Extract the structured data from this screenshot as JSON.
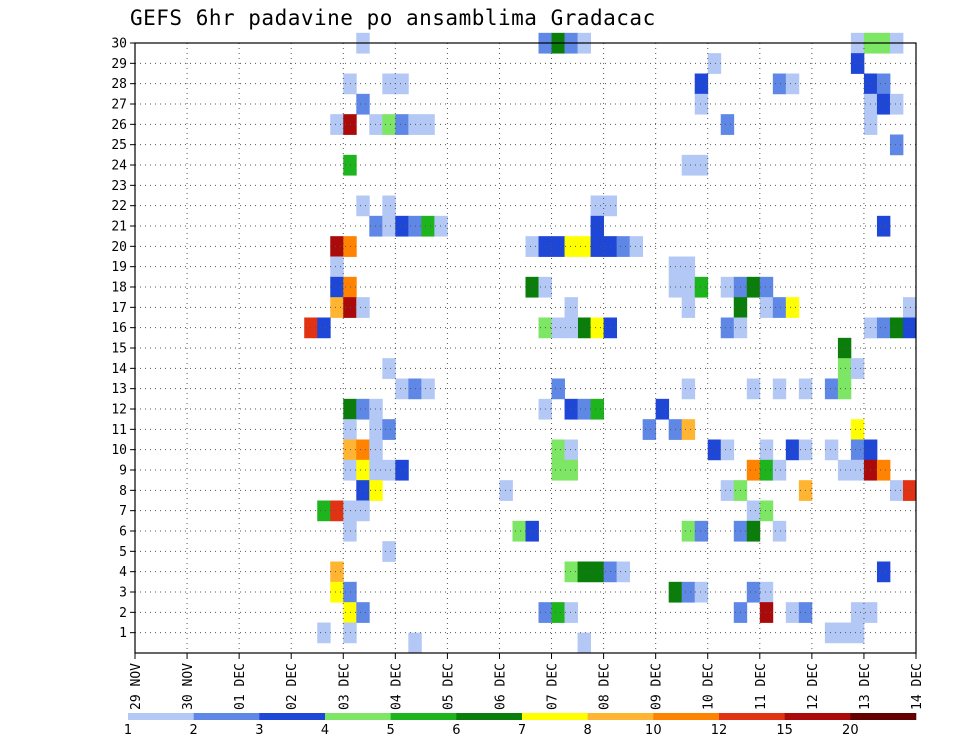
{
  "chart_data": {
    "type": "heatmap",
    "title": "GEFS 6hr padavine po ansamblima Gradacac",
    "x_ticks": [
      "29 NOV",
      "30 NOV",
      "01 DEC",
      "02 DEC",
      "03 DEC",
      "04 DEC",
      "05 DEC",
      "06 DEC",
      "07 DEC",
      "08 DEC",
      "09 DEC",
      "10 DEC",
      "11 DEC",
      "12 DEC",
      "13 DEC",
      "14 DEC"
    ],
    "y_ticks": [
      "1",
      "2",
      "3",
      "4",
      "5",
      "6",
      "7",
      "8",
      "9",
      "10",
      "11",
      "12",
      "13",
      "14",
      "15",
      "16",
      "17",
      "18",
      "19",
      "20",
      "21",
      "22",
      "23",
      "24",
      "25",
      "26",
      "27",
      "28",
      "29",
      "30"
    ],
    "x_range_days": [
      0,
      15
    ],
    "y_range_members": [
      0,
      30
    ],
    "grid": "dotted",
    "legend": {
      "placement": "bottom",
      "labels": [
        "1",
        "2",
        "3",
        "4",
        "5",
        "6",
        "7",
        "8",
        "10",
        "12",
        "15",
        "20"
      ],
      "colors": [
        "#b4c8f5",
        "#5f87e6",
        "#1e46d7",
        "#7de664",
        "#1eb41e",
        "#0a7d0a",
        "#ffff00",
        "#ffb432",
        "#ff8200",
        "#e13214",
        "#aa0a0a",
        "#640000"
      ]
    },
    "cells_note": "each cell: [day offset from 29 NOV 00z, ensemble member, color class 1-12]",
    "cells": [
      [
        4.25,
        30,
        1
      ],
      [
        7.75,
        30,
        2
      ],
      [
        8.0,
        30,
        6
      ],
      [
        8.25,
        30,
        2
      ],
      [
        8.5,
        30,
        1
      ],
      [
        13.75,
        30,
        1
      ],
      [
        14.0,
        30,
        4
      ],
      [
        14.25,
        30,
        4
      ],
      [
        14.5,
        30,
        1
      ],
      [
        11.0,
        29,
        1
      ],
      [
        13.75,
        29,
        3
      ],
      [
        4.0,
        28,
        1
      ],
      [
        4.75,
        28,
        1
      ],
      [
        5.0,
        28,
        1
      ],
      [
        10.75,
        28,
        3
      ],
      [
        12.25,
        28,
        2
      ],
      [
        12.5,
        28,
        1
      ],
      [
        14.0,
        28,
        3
      ],
      [
        14.25,
        28,
        2
      ],
      [
        4.25,
        27,
        2
      ],
      [
        10.75,
        27,
        1
      ],
      [
        14.0,
        27,
        1
      ],
      [
        14.25,
        27,
        3
      ],
      [
        14.5,
        27,
        1
      ],
      [
        3.75,
        26,
        1
      ],
      [
        4.0,
        26,
        11
      ],
      [
        4.5,
        26,
        1
      ],
      [
        4.75,
        26,
        4
      ],
      [
        5.0,
        26,
        2
      ],
      [
        5.25,
        26,
        1
      ],
      [
        5.5,
        26,
        1
      ],
      [
        11.25,
        26,
        2
      ],
      [
        14.0,
        26,
        1
      ],
      [
        14.5,
        25,
        2
      ],
      [
        4.0,
        24,
        5
      ],
      [
        10.5,
        24,
        1
      ],
      [
        10.75,
        24,
        1
      ],
      [
        4.25,
        22,
        1
      ],
      [
        4.75,
        22,
        1
      ],
      [
        8.75,
        22,
        1
      ],
      [
        9.0,
        22,
        1
      ],
      [
        4.5,
        21,
        2
      ],
      [
        4.75,
        21,
        1
      ],
      [
        5.0,
        21,
        3
      ],
      [
        5.25,
        21,
        2
      ],
      [
        5.5,
        21,
        5
      ],
      [
        5.75,
        21,
        1
      ],
      [
        8.75,
        21,
        3
      ],
      [
        14.25,
        21,
        3
      ],
      [
        3.75,
        20,
        11
      ],
      [
        4.0,
        20,
        9
      ],
      [
        7.5,
        20,
        1
      ],
      [
        7.75,
        20,
        3
      ],
      [
        8.0,
        20,
        3
      ],
      [
        8.25,
        20,
        7
      ],
      [
        8.5,
        20,
        7
      ],
      [
        8.75,
        20,
        3
      ],
      [
        9.0,
        20,
        3
      ],
      [
        9.25,
        20,
        2
      ],
      [
        9.5,
        20,
        1
      ],
      [
        3.75,
        19,
        1
      ],
      [
        10.25,
        19,
        1
      ],
      [
        10.5,
        19,
        1
      ],
      [
        3.75,
        18,
        3
      ],
      [
        4.0,
        18,
        9
      ],
      [
        7.5,
        18,
        6
      ],
      [
        7.75,
        18,
        1
      ],
      [
        10.25,
        18,
        1
      ],
      [
        10.5,
        18,
        1
      ],
      [
        10.75,
        18,
        5
      ],
      [
        11.25,
        18,
        1
      ],
      [
        11.5,
        18,
        2
      ],
      [
        11.75,
        18,
        6
      ],
      [
        12.0,
        18,
        2
      ],
      [
        3.75,
        17,
        8
      ],
      [
        4.0,
        17,
        11
      ],
      [
        4.25,
        17,
        1
      ],
      [
        8.25,
        17,
        1
      ],
      [
        10.5,
        17,
        1
      ],
      [
        11.5,
        17,
        6
      ],
      [
        12.0,
        17,
        1
      ],
      [
        12.25,
        17,
        2
      ],
      [
        12.5,
        17,
        7
      ],
      [
        14.75,
        17,
        1
      ],
      [
        8.5,
        16,
        6
      ],
      [
        8.75,
        16,
        7
      ],
      [
        9.0,
        16,
        3
      ],
      [
        8.25,
        16,
        1
      ],
      [
        14.0,
        16,
        1
      ],
      [
        3.25,
        16,
        10
      ],
      [
        3.5,
        16,
        3
      ],
      [
        7.75,
        16,
        4
      ],
      [
        8.0,
        16,
        1
      ],
      [
        11.25,
        16,
        2
      ],
      [
        11.5,
        16,
        1
      ],
      [
        14.0,
        16,
        1
      ],
      [
        14.25,
        16,
        2
      ],
      [
        14.5,
        16,
        6
      ],
      [
        14.75,
        16,
        3
      ],
      [
        13.5,
        15,
        6
      ],
      [
        4.75,
        14,
        1
      ],
      [
        13.5,
        14,
        4
      ],
      [
        13.75,
        14,
        1
      ],
      [
        5.0,
        13,
        1
      ],
      [
        5.25,
        13,
        2
      ],
      [
        5.5,
        13,
        1
      ],
      [
        8.0,
        13,
        2
      ],
      [
        10.5,
        13,
        1
      ],
      [
        11.75,
        13,
        1
      ],
      [
        12.25,
        13,
        1
      ],
      [
        12.75,
        13,
        1
      ],
      [
        13.25,
        13,
        2
      ],
      [
        13.5,
        13,
        4
      ],
      [
        4.0,
        12,
        6
      ],
      [
        4.25,
        12,
        2
      ],
      [
        4.5,
        12,
        1
      ],
      [
        7.75,
        12,
        1
      ],
      [
        8.25,
        12,
        3
      ],
      [
        8.5,
        12,
        2
      ],
      [
        8.75,
        12,
        5
      ],
      [
        10.0,
        12,
        3
      ],
      [
        4.0,
        11,
        1
      ],
      [
        4.5,
        11,
        1
      ],
      [
        4.75,
        11,
        2
      ],
      [
        9.75,
        11,
        2
      ],
      [
        10.25,
        11,
        2
      ],
      [
        10.5,
        11,
        8
      ],
      [
        13.75,
        11,
        7
      ],
      [
        4.0,
        10,
        8
      ],
      [
        4.25,
        10,
        9
      ],
      [
        4.5,
        10,
        1
      ],
      [
        8.0,
        10,
        4
      ],
      [
        8.25,
        10,
        1
      ],
      [
        11.0,
        10,
        3
      ],
      [
        11.25,
        10,
        1
      ],
      [
        12.0,
        10,
        1
      ],
      [
        12.5,
        10,
        3
      ],
      [
        12.75,
        10,
        1
      ],
      [
        13.25,
        10,
        1
      ],
      [
        13.75,
        10,
        2
      ],
      [
        14.0,
        10,
        3
      ],
      [
        4.0,
        9,
        1
      ],
      [
        4.25,
        9,
        7
      ],
      [
        4.5,
        9,
        1
      ],
      [
        4.75,
        9,
        1
      ],
      [
        5.0,
        9,
        3
      ],
      [
        8.0,
        9,
        4
      ],
      [
        8.25,
        9,
        4
      ],
      [
        11.75,
        9,
        9
      ],
      [
        12.0,
        9,
        5
      ],
      [
        12.25,
        9,
        1
      ],
      [
        13.5,
        9,
        1
      ],
      [
        13.75,
        9,
        1
      ],
      [
        14.0,
        9,
        11
      ],
      [
        14.25,
        9,
        9
      ],
      [
        4.25,
        8,
        3
      ],
      [
        4.5,
        8,
        7
      ],
      [
        7.0,
        8,
        1
      ],
      [
        11.25,
        8,
        1
      ],
      [
        11.5,
        8,
        4
      ],
      [
        12.75,
        8,
        8
      ],
      [
        14.5,
        8,
        1
      ],
      [
        14.75,
        8,
        10
      ],
      [
        3.5,
        7,
        5
      ],
      [
        3.75,
        7,
        10
      ],
      [
        4.0,
        7,
        1
      ],
      [
        4.25,
        7,
        1
      ],
      [
        11.75,
        7,
        1
      ],
      [
        12.0,
        7,
        4
      ],
      [
        4.0,
        6,
        1
      ],
      [
        7.25,
        6,
        4
      ],
      [
        7.5,
        6,
        3
      ],
      [
        10.5,
        6,
        4
      ],
      [
        10.75,
        6,
        2
      ],
      [
        11.5,
        6,
        2
      ],
      [
        11.75,
        6,
        6
      ],
      [
        12.25,
        6,
        1
      ],
      [
        4.75,
        5,
        1
      ],
      [
        3.75,
        4,
        8
      ],
      [
        8.25,
        4,
        4
      ],
      [
        8.5,
        4,
        6
      ],
      [
        8.75,
        4,
        6
      ],
      [
        9.0,
        4,
        2
      ],
      [
        9.25,
        4,
        1
      ],
      [
        14.25,
        4,
        3
      ],
      [
        3.75,
        3,
        7
      ],
      [
        4.0,
        3,
        2
      ],
      [
        10.25,
        3,
        6
      ],
      [
        10.5,
        3,
        2
      ],
      [
        10.75,
        3,
        1
      ],
      [
        11.75,
        3,
        2
      ],
      [
        12.0,
        3,
        1
      ],
      [
        4.0,
        2,
        7
      ],
      [
        4.25,
        2,
        2
      ],
      [
        7.75,
        2,
        2
      ],
      [
        8.0,
        2,
        5
      ],
      [
        8.25,
        2,
        1
      ],
      [
        11.5,
        2,
        2
      ],
      [
        12.0,
        2,
        11
      ],
      [
        12.5,
        2,
        1
      ],
      [
        12.75,
        2,
        2
      ],
      [
        13.75,
        2,
        1
      ],
      [
        14.0,
        2,
        1
      ],
      [
        3.5,
        1,
        1
      ],
      [
        4.0,
        1,
        1
      ],
      [
        13.25,
        1,
        1
      ],
      [
        13.5,
        1,
        1
      ],
      [
        13.75,
        1,
        1
      ],
      [
        5.25,
        0.5,
        1
      ],
      [
        8.5,
        0.5,
        1
      ]
    ]
  }
}
